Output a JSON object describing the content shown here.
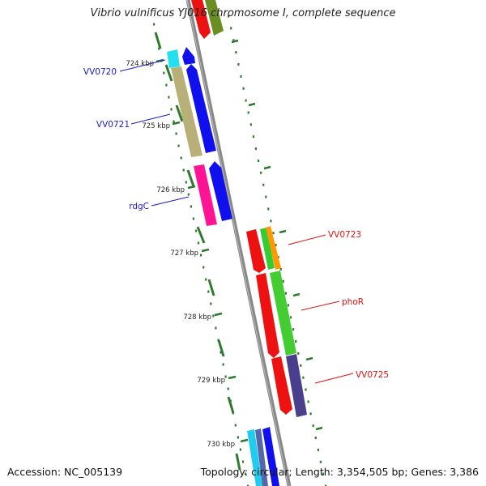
{
  "title": "Vibrio vulnificus YJ016 chromosome I, complete sequence",
  "accession": "Accession: NC_005139",
  "topology": "Topology: circular; Length: 3,354,505 bp; Genes: 3,386",
  "ticks": [
    "724 kbp",
    "725 kbp",
    "726 kbp",
    "727 kbp",
    "728 kbp",
    "729 kbp",
    "730 kbp"
  ],
  "labels": [
    {
      "text": "VV0720",
      "strand": "reverse"
    },
    {
      "text": "VV0721",
      "strand": "reverse"
    },
    {
      "text": "rdgC",
      "strand": "reverse"
    },
    {
      "text": "VV0723",
      "strand": "forward"
    },
    {
      "text": "phoR",
      "strand": "forward"
    },
    {
      "text": "VV0725",
      "strand": "forward"
    }
  ],
  "colors": {
    "backbone": "#888888",
    "tick": "#2d7a2d",
    "reverse_label": "#1a1acc",
    "forward_label": "#dd1111"
  }
}
